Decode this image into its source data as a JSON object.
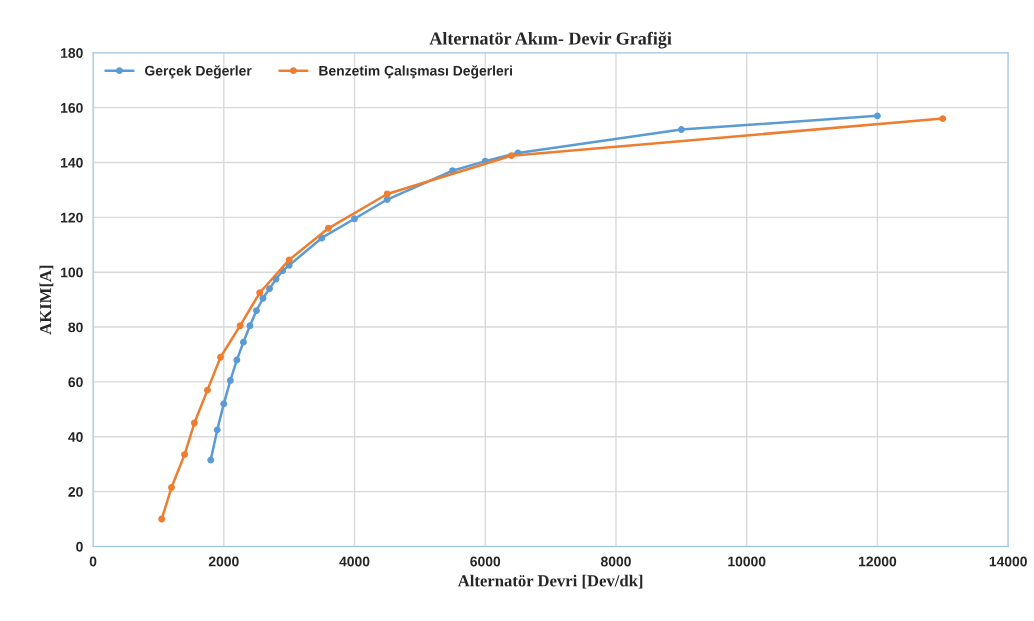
{
  "chart_data": {
    "type": "line",
    "title": "Alternatör Akım- Devir Grafiği",
    "xlabel": "Alternatör Devri [Dev/dk]",
    "ylabel": "AKIM[A]",
    "xlim": [
      0,
      14000
    ],
    "xticks": [
      0,
      2000,
      4000,
      6000,
      8000,
      10000,
      12000,
      14000
    ],
    "ylim": [
      0,
      180
    ],
    "yticks": [
      0,
      20,
      40,
      60,
      80,
      100,
      120,
      140,
      160,
      180
    ],
    "grid": true,
    "legend": "top left",
    "marker": "circle",
    "line_style": "solid",
    "series": [
      {
        "name": "Gerçek Değerler",
        "color": "#5b9bd5",
        "x": [
          1800,
          1900,
          2000,
          2100,
          2200,
          2300,
          2400,
          2500,
          2600,
          2700,
          2800,
          2900,
          3000,
          3500,
          4000,
          4500,
          5500,
          6000,
          6500,
          9000,
          12000
        ],
        "values": [
          31.5,
          42.5,
          52,
          60.5,
          68,
          74.5,
          80.5,
          86,
          90.5,
          94,
          97.5,
          100.5,
          102.5,
          112.5,
          119.5,
          126.5,
          137,
          140.5,
          143.5,
          152,
          157
        ]
      },
      {
        "name": "Benzetim Çalışması Değerleri",
        "color": "#ed7d31",
        "x": [
          1050,
          1200,
          1400,
          1550,
          1750,
          1950,
          2250,
          2550,
          3000,
          3600,
          4500,
          6400,
          13000
        ],
        "values": [
          10,
          21.5,
          33.5,
          45,
          57,
          69,
          80.5,
          92.5,
          104.5,
          116,
          128.5,
          142.5,
          156
        ]
      }
    ]
  }
}
